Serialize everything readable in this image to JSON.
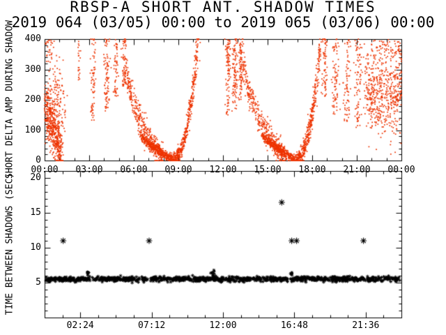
{
  "chart_data": {
    "type": "scatter",
    "title": "RBSP-A SHORT ANT. SHADOW TIMES",
    "subtitle": "2019 064 (03/05) 00:00 to 2019 065 (03/06) 00:00",
    "background": "#ffffff",
    "axis_color": "#000000",
    "panels": [
      {
        "name": "delta-amp-during-shadow",
        "ylabel": "SHORT DELTA AMP DURING SHADOW",
        "marker": "dot",
        "marker_color": "#ee3300",
        "x_range_hours": [
          0,
          24
        ],
        "y_range": [
          0,
          400
        ],
        "y_major_ticks": [
          0,
          100,
          200,
          300,
          400
        ],
        "y_minor_step": 20,
        "x_major_step_hours": 3,
        "x_minor_step_hours": 1,
        "x_tick_labels": [
          "00:00",
          "03:00",
          "06:00",
          "09:00",
          "12:00",
          "15:00",
          "18:00",
          "21:00",
          "00:00"
        ],
        "groups": [
          {
            "kind": "curve",
            "x0": 0.05,
            "x1": 1.15,
            "y0": 170,
            "y1": 15,
            "curve": 1.3,
            "n": 520,
            "sx": 0.07,
            "sy": 45,
            "oob": "clamp"
          },
          {
            "kind": "curve",
            "x0": 0.1,
            "x1": 1.35,
            "y0": 400,
            "y1": 140,
            "curve": 1.0,
            "n": 140,
            "sx": 0.1,
            "sy": 60,
            "oob": "drop"
          },
          {
            "kind": "column",
            "x": 2.3,
            "ymin": 260,
            "ymax": 400,
            "n": 22,
            "sx": 0.05
          },
          {
            "kind": "column",
            "x": 3.25,
            "ymin": 130,
            "ymax": 406,
            "n": 70,
            "sx": 0.08
          },
          {
            "kind": "column",
            "x": 4.2,
            "ymin": 160,
            "ymax": 406,
            "n": 85,
            "sx": 0.1
          },
          {
            "kind": "column",
            "x": 4.8,
            "ymin": 210,
            "ymax": 402,
            "n": 55,
            "sx": 0.07
          },
          {
            "kind": "column",
            "x": 5.35,
            "ymin": 240,
            "ymax": 406,
            "n": 60,
            "sx": 0.08
          },
          {
            "kind": "curve",
            "x0": 5.35,
            "x1": 7.95,
            "y0": 390,
            "y1": 10,
            "curve": 0.45,
            "n": 360,
            "sx": 0.08,
            "sy": 22,
            "oob": "clamp"
          },
          {
            "kind": "curve",
            "x0": 6.45,
            "x1": 8.6,
            "y0": 85,
            "y1": 2,
            "curve": 0.8,
            "n": 430,
            "sx": 0.06,
            "sy": 7,
            "oob": "clamp"
          },
          {
            "kind": "curve",
            "x0": 8.6,
            "x1": 10.35,
            "y0": 4,
            "y1": 405,
            "curve": 2.3,
            "n": 440,
            "sx": 0.06,
            "sy": 12,
            "oob": "clamp"
          },
          {
            "kind": "column",
            "x": 12.35,
            "ymin": 150,
            "ymax": 406,
            "n": 95,
            "sx": 0.09
          },
          {
            "kind": "column",
            "x": 12.8,
            "ymin": 170,
            "ymax": 406,
            "n": 95,
            "sx": 0.09
          },
          {
            "kind": "column",
            "x": 13.2,
            "ymin": 200,
            "ymax": 406,
            "n": 80,
            "sx": 0.08
          },
          {
            "kind": "curve",
            "x0": 13.3,
            "x1": 16.15,
            "y0": 390,
            "y1": 10,
            "curve": 0.45,
            "n": 360,
            "sx": 0.08,
            "sy": 22,
            "oob": "clamp"
          },
          {
            "kind": "curve",
            "x0": 14.65,
            "x1": 16.9,
            "y0": 85,
            "y1": 2,
            "curve": 0.8,
            "n": 430,
            "sx": 0.06,
            "sy": 7,
            "oob": "clamp"
          },
          {
            "kind": "curve",
            "x0": 16.9,
            "x1": 18.55,
            "y0": 4,
            "y1": 390,
            "curve": 2.3,
            "n": 400,
            "sx": 0.06,
            "sy": 14,
            "oob": "clamp"
          },
          {
            "kind": "column",
            "x": 18.85,
            "ymin": 210,
            "ymax": 406,
            "n": 65,
            "sx": 0.09
          },
          {
            "kind": "column",
            "x": 19.55,
            "ymin": 150,
            "ymax": 406,
            "n": 75,
            "sx": 0.11
          },
          {
            "kind": "column",
            "x": 20.35,
            "ymin": 120,
            "ymax": 402,
            "n": 70,
            "sx": 0.11
          },
          {
            "kind": "column",
            "x": 21.1,
            "ymin": 100,
            "ymax": 402,
            "n": 80,
            "sx": 0.12
          },
          {
            "kind": "curve",
            "x0": 21.6,
            "x1": 23.95,
            "y0": 240,
            "y1": 210,
            "curve": 1.0,
            "n": 520,
            "sx": 0.12,
            "sy": 70,
            "oob": "drop"
          },
          {
            "kind": "curve",
            "x0": 22.3,
            "x1": 23.95,
            "y0": 395,
            "y1": 370,
            "curve": 1.0,
            "n": 110,
            "sx": 0.1,
            "sy": 30,
            "oob": "drop"
          }
        ]
      },
      {
        "name": "time-between-shadows",
        "ylabel": "TIME BETWEEN SHADOWS (SEC)",
        "marker": "asterisk",
        "marker_color": "#000000",
        "x_range_hours": [
          0,
          24
        ],
        "y_range": [
          0,
          21
        ],
        "y_major_ticks": [
          5,
          10,
          15,
          20
        ],
        "y_minor_step": 1,
        "x_major_ticks_hours": [
          2.4,
          7.2,
          12,
          16.8,
          21.6
        ],
        "x_minor_step_hours": 1.2,
        "x_tick_labels": [
          "02:24",
          "07:12",
          "12:00",
          "16:48",
          "21:36"
        ],
        "band": {
          "y": 5.5,
          "sy": 0.18,
          "x0": 0.08,
          "x1": 23.92,
          "n": 950,
          "gaps": [
            [
              6.93,
              7.1
            ],
            [
              16.38,
              16.55
            ]
          ]
        },
        "bumps": [
          {
            "x": 2.92,
            "y": 6.2,
            "n": 9,
            "sx": 0.05,
            "sy": 0.25
          },
          {
            "x": 11.32,
            "y": 6.4,
            "n": 12,
            "sx": 0.09,
            "sy": 0.3
          },
          {
            "x": 16.62,
            "y": 6.2,
            "n": 7,
            "sx": 0.05,
            "sy": 0.25
          }
        ],
        "outliers": [
          {
            "x": 1.25,
            "y": 11
          },
          {
            "x": 7.03,
            "y": 11
          },
          {
            "x": 15.95,
            "y": 16.5
          },
          {
            "x": 16.62,
            "y": 11
          },
          {
            "x": 16.95,
            "y": 11
          },
          {
            "x": 21.45,
            "y": 11
          }
        ]
      }
    ]
  }
}
